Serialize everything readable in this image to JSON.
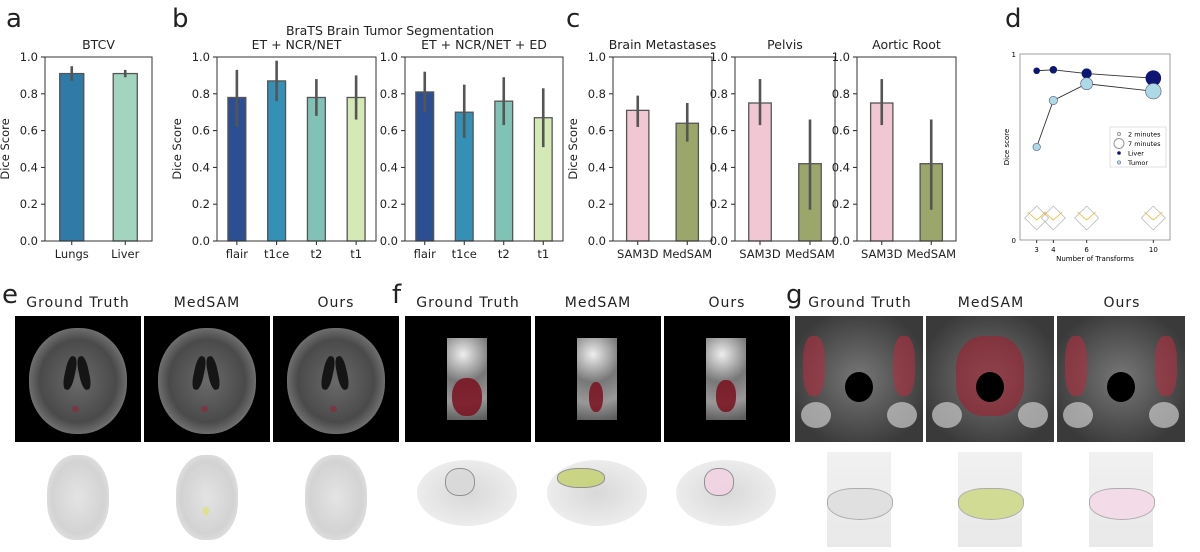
{
  "panel_labels": {
    "a": "a",
    "b": "b",
    "c": "c",
    "d": "d",
    "e": "e",
    "f": "f",
    "g": "g"
  },
  "image_panels": {
    "columns": [
      "Ground Truth",
      "MedSAM",
      "Ours"
    ]
  },
  "chart_data": [
    {
      "id": "a",
      "type": "bar",
      "title": "BTCV",
      "ylabel": "Dice Score",
      "ylim": [
        0,
        1
      ],
      "yticks": [
        "0.0",
        "0.2",
        "0.4",
        "0.6",
        "0.8",
        "1.0"
      ],
      "categories": [
        "Lungs",
        "Liver"
      ],
      "values": [
        0.91,
        0.91
      ],
      "err_low": [
        0.87,
        0.89
      ],
      "err_high": [
        0.95,
        0.93
      ],
      "colors": [
        "#2f7aa7",
        "#a2d4c0"
      ]
    },
    {
      "id": "b1",
      "type": "bar",
      "suptitle": "BraTS Brain Tumor Segmentation",
      "title": "ET + NCR/NET",
      "ylabel": "Dice Score",
      "ylim": [
        0,
        1
      ],
      "yticks": [
        "0.0",
        "0.2",
        "0.4",
        "0.6",
        "0.8",
        "1.0"
      ],
      "categories": [
        "flair",
        "t1ce",
        "t2",
        "t1"
      ],
      "values": [
        0.78,
        0.87,
        0.78,
        0.78
      ],
      "err_low": [
        0.62,
        0.76,
        0.68,
        0.66
      ],
      "err_high": [
        0.93,
        0.98,
        0.88,
        0.9
      ],
      "colors": [
        "#2c4f94",
        "#3590b5",
        "#80c2b6",
        "#d5e9b6"
      ]
    },
    {
      "id": "b2",
      "type": "bar",
      "title": "ET + NCR/NET + ED",
      "ylabel": "",
      "ylim": [
        0,
        1
      ],
      "yticks": [
        "0.0",
        "0.2",
        "0.4",
        "0.6",
        "0.8",
        "1.0"
      ],
      "categories": [
        "flair",
        "t1ce",
        "t2",
        "t1"
      ],
      "values": [
        0.81,
        0.7,
        0.76,
        0.67
      ],
      "err_low": [
        0.7,
        0.56,
        0.63,
        0.51
      ],
      "err_high": [
        0.92,
        0.85,
        0.89,
        0.83
      ],
      "colors": [
        "#2c4f94",
        "#3590b5",
        "#80c2b6",
        "#d5e9b6"
      ]
    },
    {
      "id": "c1",
      "type": "bar",
      "title": "Brain Metastases",
      "ylabel": "Dice Score",
      "ylim": [
        0,
        1
      ],
      "yticks": [
        "0.0",
        "0.2",
        "0.4",
        "0.6",
        "0.8",
        "1.0"
      ],
      "categories": [
        "SAM3D",
        "MedSAM"
      ],
      "values": [
        0.71,
        0.64
      ],
      "err_low": [
        0.62,
        0.54
      ],
      "err_high": [
        0.79,
        0.75
      ],
      "colors": [
        "#f0c7d3",
        "#9ba66b"
      ]
    },
    {
      "id": "c2",
      "type": "bar",
      "title": "Pelvis",
      "ylabel": "",
      "ylim": [
        0,
        1
      ],
      "yticks": [
        "0.0",
        "0.2",
        "0.4",
        "0.6",
        "0.8",
        "1.0"
      ],
      "categories": [
        "SAM3D",
        "MedSAM"
      ],
      "values": [
        0.75,
        0.42
      ],
      "err_low": [
        0.63,
        0.17
      ],
      "err_high": [
        0.88,
        0.66
      ],
      "colors": [
        "#f0c7d3",
        "#9ba66b"
      ]
    },
    {
      "id": "c3",
      "type": "bar",
      "title": "Aortic Root",
      "ylabel": "",
      "ylim": [
        0,
        1
      ],
      "yticks": [
        "0.0",
        "0.2",
        "0.4",
        "0.6",
        "0.8",
        "1.0"
      ],
      "categories": [
        "SAM3D",
        "MedSAM"
      ],
      "values": [
        0.75,
        0.42
      ],
      "err_low": [
        0.63,
        0.17
      ],
      "err_high": [
        0.88,
        0.66
      ],
      "colors": [
        "#f0c7d3",
        "#9ba66b"
      ]
    },
    {
      "id": "d",
      "type": "line",
      "xlabel": "Number of Transforms",
      "ylabel": "Dice score",
      "ylim": [
        0,
        1
      ],
      "yticks": [
        "0",
        "1"
      ],
      "x": [
        3,
        4,
        6,
        10
      ],
      "xticks": [
        "3",
        "4",
        "6",
        "10"
      ],
      "xlim": [
        2,
        11
      ],
      "series": [
        {
          "name": "Liver",
          "color": "#0d1673",
          "values": [
            0.91,
            0.915,
            0.895,
            0.87
          ],
          "minutes": [
            2,
            2.5,
            4,
            7
          ]
        },
        {
          "name": "Tumor",
          "color": "#add8e6",
          "values": [
            0.5,
            0.75,
            0.84,
            0.8
          ],
          "minutes": [
            2.5,
            3,
            5,
            7
          ]
        }
      ],
      "legend": [
        "2 minutes",
        "7 minutes",
        "Liver",
        "Tumor"
      ],
      "legend_position": "center-right"
    }
  ]
}
